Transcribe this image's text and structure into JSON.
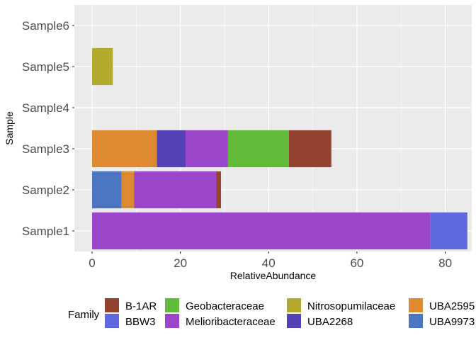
{
  "chart_data": {
    "type": "bar",
    "orientation": "horizontal",
    "stacked": true,
    "categories": [
      "Sample1",
      "Sample2",
      "Sample3",
      "Sample4",
      "Sample5",
      "Sample6"
    ],
    "xlabel": "RelativeAbundance",
    "ylabel": "Sample",
    "xlim": [
      -4,
      86
    ],
    "xticks": [
      0,
      20,
      40,
      60,
      80
    ],
    "grid": true,
    "legend_title": "Family",
    "legend_position": "bottom",
    "series": [
      {
        "name": "B-1AR",
        "color": "#93432F",
        "values": [
          0,
          1.1,
          9.6,
          0,
          0,
          0
        ]
      },
      {
        "name": "BBW3",
        "color": "#6068DE",
        "values": [
          8.4,
          0,
          0,
          0,
          0,
          0
        ]
      },
      {
        "name": "Geobacteraceae",
        "color": "#61BA3A",
        "values": [
          0,
          0,
          13.8,
          0,
          0,
          0
        ]
      },
      {
        "name": "Melioribacteraceae",
        "color": "#9B45CB",
        "values": [
          76.6,
          18.6,
          9.6,
          0,
          0,
          0
        ]
      },
      {
        "name": "Nitrosopumilaceae",
        "color": "#B2AA2C",
        "values": [
          0,
          0,
          0,
          0,
          4.7,
          0
        ]
      },
      {
        "name": "UBA2268",
        "color": "#5342B5",
        "values": [
          0,
          0,
          6.5,
          0,
          0,
          0
        ]
      },
      {
        "name": "UBA2595",
        "color": "#DD8A30",
        "values": [
          0,
          2.8,
          14.7,
          0,
          0,
          0
        ]
      },
      {
        "name": "UBA9973",
        "color": "#4D76C2",
        "values": [
          0,
          6.7,
          0,
          0,
          0,
          0
        ]
      }
    ],
    "stack_order": [
      "UBA9973",
      "UBA2595",
      "UBA2268",
      "Nitrosopumilaceae",
      "Melioribacteraceae",
      "Geobacteraceae",
      "BBW3",
      "B-1AR"
    ]
  }
}
